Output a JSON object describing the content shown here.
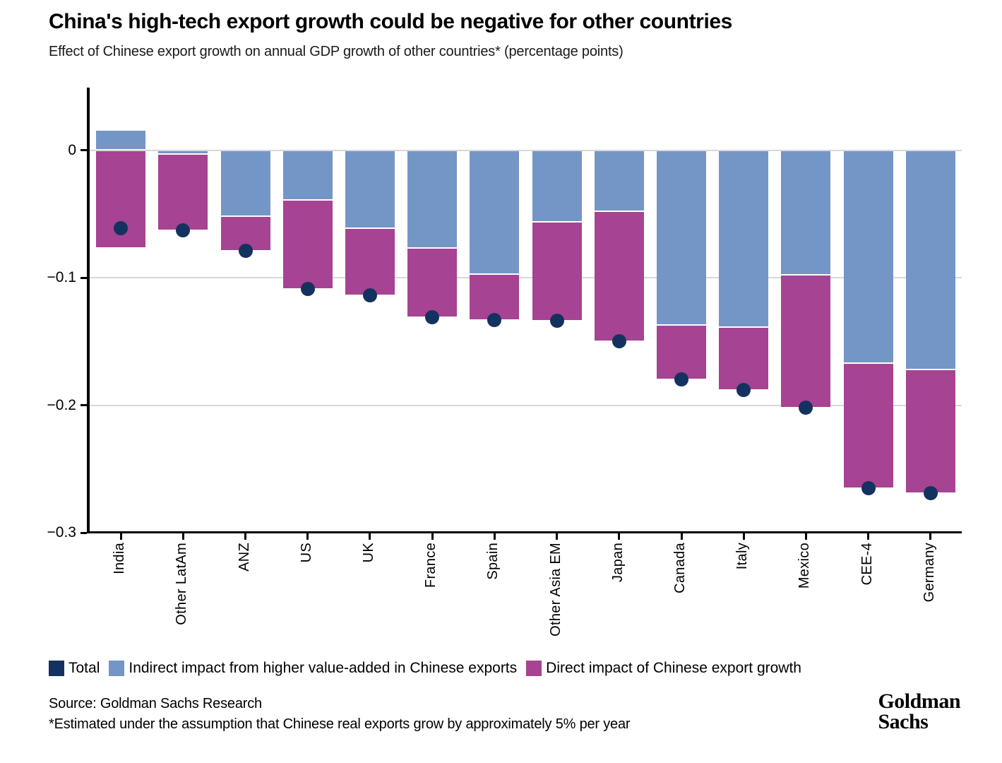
{
  "header": {
    "title": "China's high-tech export growth could be negative for other countries",
    "subtitle": "Effect of Chinese export growth on annual GDP growth of other countries* (percentage points)"
  },
  "chart_data": {
    "type": "bar",
    "stacked": true,
    "orientation": "vertical",
    "categories": [
      "India",
      "Other LatAm",
      "ANZ",
      "US",
      "UK",
      "France",
      "Spain",
      "Other Asia EM",
      "Japan",
      "Canada",
      "Italy",
      "Mexico",
      "CEE-4",
      "Germany"
    ],
    "series": [
      {
        "key": "indirect",
        "name": "Indirect impact from higher value-added in Chinese exports",
        "color": "#7496c6",
        "values": [
          0.016,
          -0.003,
          -0.052,
          -0.039,
          -0.061,
          -0.077,
          -0.097,
          -0.056,
          -0.048,
          -0.137,
          -0.139,
          -0.098,
          -0.167,
          -0.172
        ]
      },
      {
        "key": "direct",
        "name": "Direct impact of Chinese export growth",
        "color": "#a64392",
        "values": [
          -0.077,
          -0.06,
          -0.027,
          -0.07,
          -0.053,
          -0.054,
          -0.036,
          -0.078,
          -0.102,
          -0.043,
          -0.049,
          -0.104,
          -0.098,
          -0.097
        ]
      }
    ],
    "total_series": {
      "key": "total",
      "name": "Total",
      "marker": "circle",
      "color": "#14325f",
      "values": [
        -0.061,
        -0.063,
        -0.079,
        -0.109,
        -0.114,
        -0.131,
        -0.133,
        -0.134,
        -0.15,
        -0.18,
        -0.188,
        -0.202,
        -0.265,
        -0.269
      ]
    },
    "ylim": [
      -0.3,
      0.049
    ],
    "yticks": [
      0,
      -0.1,
      -0.2,
      -0.3
    ],
    "ytick_labels": [
      "0",
      "−0.1",
      "−0.2",
      "−0.3"
    ],
    "grid": "horizontal",
    "gridline_color": "#d8d8d8",
    "legend_position": "bottom"
  },
  "footer": {
    "source": "Source: Goldman Sachs Research",
    "footnote": "*Estimated under the assumption that Chinese real exports grow by approximately 5% per year",
    "logo_line1": "Goldman",
    "logo_line2": "Sachs"
  }
}
